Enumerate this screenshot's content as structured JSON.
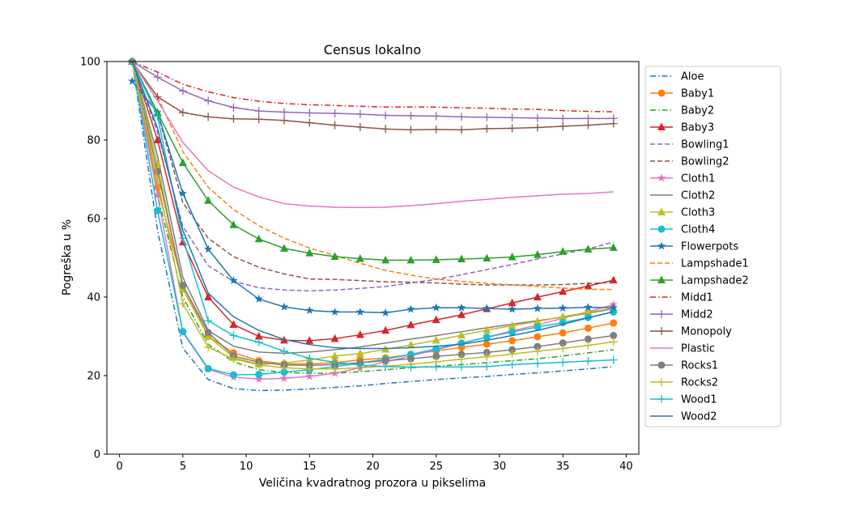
{
  "chart_data": {
    "type": "line",
    "title": "Census lokalno",
    "xlabel": "Veličina kvadratnog prozora u pikselima",
    "ylabel": "Pogreška u %",
    "xlim": [
      -1,
      41
    ],
    "ylim": [
      0,
      100
    ],
    "xticks": [
      0,
      5,
      10,
      15,
      20,
      25,
      30,
      35,
      40
    ],
    "yticks": [
      0,
      20,
      40,
      60,
      80,
      100
    ],
    "grid": false,
    "legend": "outside-right",
    "x": [
      1,
      3,
      5,
      7,
      9,
      11,
      13,
      15,
      17,
      19,
      21,
      23,
      25,
      27,
      29,
      31,
      33,
      35,
      37,
      39
    ],
    "series": [
      {
        "name": "Aloe",
        "color": "#1f77b4",
        "dash": "dashdot",
        "marker": "none",
        "values": [
          100,
          57,
          27,
          19,
          16.7,
          16.2,
          16.3,
          16.6,
          17,
          17.4,
          18,
          18.5,
          19,
          19.4,
          19.8,
          20.3,
          20.7,
          21.2,
          21.7,
          22.3
        ]
      },
      {
        "name": "Baby1",
        "color": "#ff7f0e",
        "dash": "solid",
        "marker": "circle",
        "values": [
          100,
          68,
          43,
          30,
          25.8,
          23.8,
          23,
          23,
          23.3,
          24,
          24.5,
          25.4,
          26.3,
          27.2,
          28,
          28.9,
          29.9,
          30.9,
          32.1,
          33.4
        ]
      },
      {
        "name": "Baby2",
        "color": "#2ca02c",
        "dash": "dashdot",
        "marker": "none",
        "values": [
          100,
          66,
          40,
          28,
          23.5,
          21.5,
          20.8,
          20.6,
          20.6,
          21,
          21.5,
          22,
          22.4,
          22.8,
          23.3,
          23.8,
          24.3,
          25,
          25.8,
          26.6
        ]
      },
      {
        "name": "Baby3",
        "color": "#d62728",
        "dash": "solid",
        "marker": "triangle",
        "values": [
          100,
          80,
          54,
          40,
          33,
          30,
          29,
          28.9,
          29.4,
          30.4,
          31.5,
          32.9,
          34.2,
          35.5,
          37,
          38.5,
          40,
          41.4,
          42.8,
          44.3
        ]
      },
      {
        "name": "Bowling1",
        "color": "#9467bd",
        "dash": "dashed",
        "marker": "none",
        "values": [
          100,
          82,
          58,
          48,
          44,
          42.4,
          41.8,
          41.6,
          41.8,
          42.2,
          42.7,
          43.6,
          44.5,
          45.7,
          47,
          48.3,
          49.7,
          51,
          52.3,
          54
        ]
      },
      {
        "name": "Bowling2",
        "color": "#8c564b",
        "dash": "dashed",
        "marker": "none",
        "values": [
          100,
          87,
          64,
          55,
          50.3,
          47.6,
          45.9,
          44.6,
          44.5,
          44.2,
          43.9,
          43.8,
          43.6,
          43.3,
          43.1,
          43.1,
          43.1,
          43.2,
          43.5,
          43.7
        ]
      },
      {
        "name": "Cloth1",
        "color": "#e377c2",
        "dash": "solid",
        "marker": "star",
        "values": [
          100,
          66,
          31,
          21.6,
          19.6,
          19.1,
          19.3,
          19.8,
          20.6,
          22,
          23.5,
          25,
          26.6,
          28.2,
          29.8,
          31.4,
          32.9,
          34.6,
          36.3,
          38.1
        ]
      },
      {
        "name": "Cloth2",
        "color": "#7f7f7f",
        "dash": "solid",
        "marker": "none",
        "values": [
          100,
          76,
          45,
          31.5,
          27.5,
          26,
          25.7,
          26,
          26.6,
          27.3,
          28.3,
          29.3,
          30.2,
          31.2,
          32.2,
          33.1,
          34,
          34.9,
          35.9,
          37
        ]
      },
      {
        "name": "Cloth3",
        "color": "#bcbd22",
        "dash": "solid",
        "marker": "triangle",
        "values": [
          100,
          74,
          42,
          30,
          24.6,
          22.9,
          23.2,
          24,
          25,
          25.6,
          26.7,
          27.8,
          29,
          30.3,
          31.6,
          32.7,
          33.8,
          35,
          36.1,
          37.2
        ]
      },
      {
        "name": "Cloth4",
        "color": "#17becf",
        "dash": "solid",
        "marker": "circle",
        "values": [
          100,
          62,
          31.2,
          21.8,
          20.2,
          20.3,
          20.9,
          21.5,
          22.3,
          23.2,
          24.2,
          25.4,
          26.8,
          28.3,
          29.8,
          31.1,
          32.4,
          33.5,
          34.8,
          36.2
        ]
      },
      {
        "name": "Flowerpots",
        "color": "#1f77b4",
        "dash": "solid",
        "marker": "star",
        "values": [
          95,
          87,
          66.4,
          52.2,
          44.2,
          39.5,
          37.5,
          36.6,
          36.2,
          36.2,
          36,
          36.9,
          37.3,
          37.3,
          37.1,
          36.9,
          37.1,
          37.2,
          37.4,
          37.3
        ]
      },
      {
        "name": "Lampshade1",
        "color": "#ff7f0e",
        "dash": "dashed",
        "marker": "none",
        "values": [
          100,
          91,
          77,
          68,
          62.3,
          58.2,
          55,
          52.5,
          50.6,
          48.6,
          46.8,
          45.6,
          44.6,
          44,
          43.5,
          43.1,
          42.7,
          42.3,
          42,
          41.9
        ]
      },
      {
        "name": "Lampshade2",
        "color": "#2ca02c",
        "dash": "solid",
        "marker": "triangle",
        "values": [
          100,
          87,
          74.2,
          64.6,
          58.4,
          54.8,
          52.4,
          51.2,
          50.3,
          49.8,
          49.4,
          49.4,
          49.5,
          49.7,
          49.9,
          50.2,
          50.8,
          51.6,
          52.2,
          52.6
        ]
      },
      {
        "name": "Midd1",
        "color": "#d62728",
        "dash": "dashdot",
        "marker": "none",
        "values": [
          100,
          97.3,
          94.2,
          92.3,
          90.8,
          89.9,
          89.3,
          89,
          88.8,
          88.6,
          88.4,
          88.4,
          88.4,
          88.2,
          88.1,
          87.9,
          87.8,
          87.5,
          87.3,
          87.2
        ]
      },
      {
        "name": "Midd2",
        "color": "#9467bd",
        "dash": "solid",
        "marker": "plus",
        "values": [
          100,
          96,
          92.5,
          90,
          88.3,
          87.4,
          87.1,
          86.9,
          86.8,
          86.6,
          86.3,
          86.2,
          86.1,
          85.9,
          85.8,
          85.7,
          85.6,
          85.5,
          85.5,
          85.5
        ]
      },
      {
        "name": "Monopoly",
        "color": "#8c564b",
        "dash": "solid",
        "marker": "plus",
        "values": [
          100,
          91,
          87,
          85.9,
          85.4,
          85.3,
          85,
          84.4,
          83.8,
          83.3,
          82.8,
          82.6,
          82.7,
          82.6,
          82.9,
          83,
          83.2,
          83.5,
          83.8,
          84.2
        ]
      },
      {
        "name": "Plastic",
        "color": "#e377c2",
        "dash": "solid",
        "marker": "none",
        "values": [
          100,
          90,
          79.4,
          72.2,
          68,
          65.5,
          63.8,
          63.2,
          62.9,
          62.8,
          62.9,
          63.3,
          63.8,
          64.4,
          64.9,
          65.4,
          65.8,
          66.2,
          66.4,
          66.8
        ]
      },
      {
        "name": "Rocks1",
        "color": "#7f7f7f",
        "dash": "solid",
        "marker": "circle",
        "values": [
          100,
          72,
          43,
          31,
          25,
          23.4,
          22.7,
          22.6,
          22.8,
          23.3,
          23.8,
          24.3,
          24.9,
          25.4,
          25.9,
          26.6,
          27.4,
          28.3,
          29.3,
          30.2
        ]
      },
      {
        "name": "Rocks2",
        "color": "#bcbd22",
        "dash": "solid",
        "marker": "plus",
        "values": [
          100,
          70,
          38.3,
          27.2,
          24.3,
          22.7,
          22,
          21.7,
          21.7,
          22,
          22.4,
          22.9,
          23.5,
          24.2,
          24.8,
          25.5,
          26.2,
          26.9,
          27.7,
          28.6
        ]
      },
      {
        "name": "Wood1",
        "color": "#17becf",
        "dash": "solid",
        "marker": "plus",
        "values": [
          100,
          86,
          55,
          34,
          30.2,
          28.5,
          26.2,
          24.4,
          23.4,
          22.7,
          22.3,
          22.2,
          22.2,
          22.2,
          22.3,
          22.8,
          23.1,
          23.4,
          23.7,
          24
        ]
      },
      {
        "name": "Wood2",
        "color": "#1f77b4",
        "dash": "solid",
        "marker": "none",
        "values": [
          100,
          83,
          57,
          41,
          35,
          31.5,
          29.2,
          27.9,
          27.1,
          26.9,
          26.9,
          27.1,
          27.5,
          28,
          29,
          30.2,
          31.5,
          33.1,
          34.7,
          36.3
        ]
      }
    ]
  }
}
